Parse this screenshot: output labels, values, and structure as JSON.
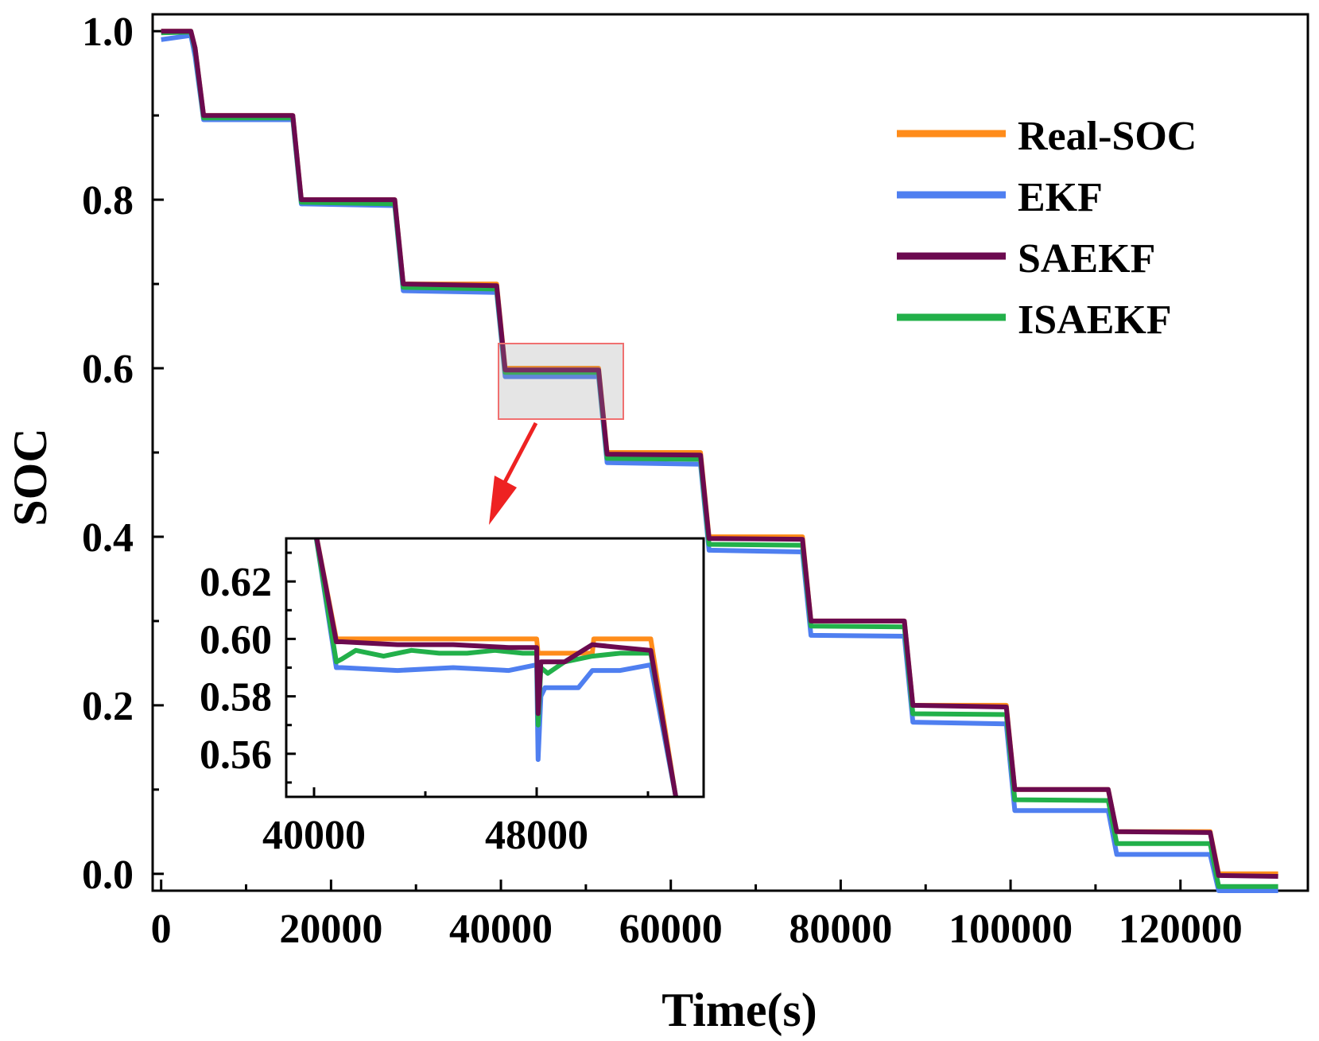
{
  "chart_data": [
    {
      "type": "line",
      "title": "",
      "xlabel": "Time(s)",
      "ylabel": "SOC",
      "xlim": [
        -1000,
        135000
      ],
      "ylim": [
        -0.02,
        1.02
      ],
      "x_ticks": [
        0,
        20000,
        40000,
        60000,
        80000,
        100000,
        120000
      ],
      "x_tick_labels": [
        "0",
        "20000",
        "40000",
        "60000",
        "80000",
        "100000",
        "120000"
      ],
      "y_ticks": [
        0.0,
        0.2,
        0.4,
        0.6,
        0.8,
        1.0
      ],
      "y_tick_labels": [
        "0.0",
        "0.2",
        "0.4",
        "0.6",
        "0.8",
        "1.0"
      ],
      "legend_position": "top-right",
      "series": [
        {
          "name": "Real-SOC",
          "color": "#ff8c1a",
          "x": [
            0,
            3500,
            4000,
            5000,
            15500,
            16500,
            27500,
            28500,
            39500,
            40500,
            51500,
            52500,
            63500,
            64500,
            75500,
            76500,
            87500,
            88500,
            99500,
            100500,
            111500,
            112500,
            123500,
            124500,
            131500
          ],
          "y": [
            1.0,
            1.0,
            0.98,
            0.9,
            0.9,
            0.8,
            0.8,
            0.7,
            0.7,
            0.6,
            0.6,
            0.5,
            0.5,
            0.4,
            0.4,
            0.3,
            0.3,
            0.2,
            0.2,
            0.1,
            0.1,
            0.05,
            0.05,
            0.0,
            0.0
          ]
        },
        {
          "name": "EKF",
          "color": "#4f7ff0",
          "x": [
            0,
            3500,
            4000,
            5000,
            15500,
            16500,
            27500,
            28500,
            39500,
            40500,
            51500,
            52500,
            63500,
            64500,
            75500,
            76500,
            87500,
            88500,
            99500,
            100500,
            111500,
            112500,
            123500,
            124500,
            131500
          ],
          "y": [
            0.99,
            0.995,
            0.97,
            0.895,
            0.895,
            0.795,
            0.793,
            0.692,
            0.69,
            0.59,
            0.59,
            0.488,
            0.486,
            0.384,
            0.382,
            0.283,
            0.282,
            0.18,
            0.178,
            0.075,
            0.075,
            0.023,
            0.023,
            -0.02,
            -0.02
          ]
        },
        {
          "name": "SAEKF",
          "color": "#6b0a4f",
          "x": [
            0,
            3500,
            4000,
            5000,
            15500,
            16500,
            27500,
            28500,
            39500,
            40500,
            51500,
            52500,
            63500,
            64500,
            75500,
            76500,
            87500,
            88500,
            99500,
            100500,
            111500,
            112500,
            123500,
            124500,
            131500
          ],
          "y": [
            1.0,
            1.0,
            0.98,
            0.9,
            0.9,
            0.8,
            0.8,
            0.7,
            0.698,
            0.598,
            0.598,
            0.498,
            0.497,
            0.398,
            0.397,
            0.3,
            0.3,
            0.2,
            0.198,
            0.1,
            0.1,
            0.05,
            0.049,
            -0.002,
            -0.003
          ]
        },
        {
          "name": "ISAEKF",
          "color": "#22b04a",
          "x": [
            0,
            3500,
            4000,
            5000,
            15500,
            16500,
            27500,
            28500,
            39500,
            40500,
            51500,
            52500,
            63500,
            64500,
            75500,
            76500,
            87500,
            88500,
            99500,
            100500,
            111500,
            112500,
            123500,
            124500,
            131500
          ],
          "y": [
            0.998,
            0.999,
            0.978,
            0.897,
            0.897,
            0.797,
            0.795,
            0.696,
            0.694,
            0.595,
            0.595,
            0.493,
            0.492,
            0.391,
            0.39,
            0.294,
            0.293,
            0.19,
            0.189,
            0.088,
            0.087,
            0.036,
            0.036,
            -0.015,
            -0.015
          ]
        }
      ],
      "annotation": "magnified region 39500–53500 s, SOC 0.545–0.635"
    },
    {
      "type": "line",
      "title": "",
      "xlabel": "",
      "ylabel": "",
      "xlim": [
        39000,
        54000
      ],
      "ylim": [
        0.545,
        0.635
      ],
      "x_ticks": [
        40000,
        48000
      ],
      "x_tick_labels": [
        "40000",
        "48000"
      ],
      "y_ticks": [
        0.56,
        0.58,
        0.6,
        0.62
      ],
      "y_tick_labels": [
        "0.56",
        "0.58",
        "0.60",
        "0.62"
      ],
      "series": [
        {
          "name": "Real-SOC",
          "color": "#ff8c1a",
          "x": [
            40000,
            40800,
            41000,
            48000,
            48050,
            50000,
            50050,
            52100,
            53000
          ],
          "y": [
            0.64,
            0.6,
            0.6,
            0.6,
            0.595,
            0.595,
            0.6,
            0.6,
            0.545
          ]
        },
        {
          "name": "EKF",
          "color": "#4f7ff0",
          "x": [
            40000,
            40800,
            41000,
            43000,
            45000,
            47000,
            48000,
            48050,
            48150,
            48300,
            49500,
            50000,
            51000,
            52100,
            53000
          ],
          "y": [
            0.64,
            0.59,
            0.59,
            0.589,
            0.59,
            0.589,
            0.591,
            0.558,
            0.58,
            0.583,
            0.583,
            0.589,
            0.589,
            0.591,
            0.545
          ]
        },
        {
          "name": "ISAEKF",
          "color": "#22b04a",
          "x": [
            40000,
            40800,
            41000,
            41500,
            42500,
            43500,
            44500,
            45500,
            46500,
            47500,
            48000,
            48050,
            48150,
            48400,
            49000,
            50000,
            51000,
            52100,
            53000
          ],
          "y": [
            0.64,
            0.592,
            0.593,
            0.596,
            0.594,
            0.596,
            0.595,
            0.595,
            0.596,
            0.595,
            0.595,
            0.57,
            0.59,
            0.588,
            0.592,
            0.594,
            0.595,
            0.595,
            0.545
          ]
        },
        {
          "name": "SAEKF",
          "color": "#6b0a4f",
          "x": [
            40000,
            40800,
            41000,
            43000,
            45000,
            47000,
            48000,
            48050,
            48150,
            49000,
            50000,
            51000,
            52100,
            53000
          ],
          "y": [
            0.64,
            0.599,
            0.599,
            0.598,
            0.598,
            0.597,
            0.597,
            0.574,
            0.592,
            0.592,
            0.598,
            0.597,
            0.596,
            0.545
          ]
        }
      ]
    }
  ]
}
